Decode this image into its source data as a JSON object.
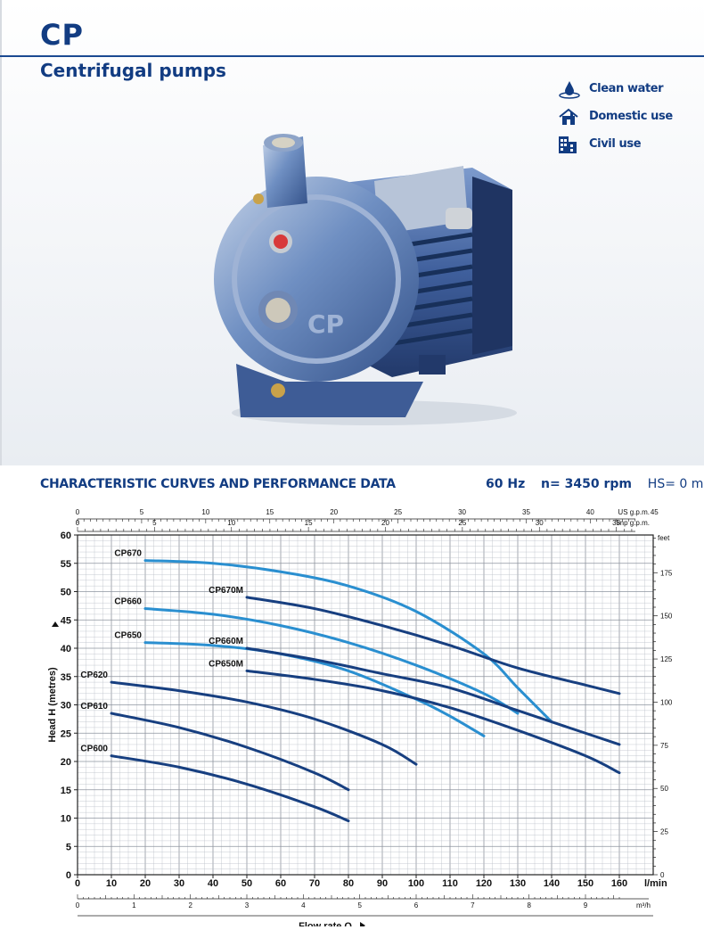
{
  "header": {
    "model": "CP",
    "product": "Centrifugal pumps"
  },
  "uses": [
    {
      "icon": "water-drop-icon",
      "label": "Clean water"
    },
    {
      "icon": "house-icon",
      "label": "Domestic use"
    },
    {
      "icon": "building-icon",
      "label": "Civil use"
    }
  ],
  "section": {
    "title": "CHARACTERISTIC CURVES AND PERFORMANCE DATA",
    "frequency": "60 Hz",
    "speed": "n= 3450 rpm",
    "suction": "HS= 0 m"
  },
  "colors": {
    "brand": "#123c82",
    "curve_light": "#2a8fd0",
    "curve_dark": "#173f80",
    "grid": "#b9bec6"
  },
  "chart_data": {
    "type": "line",
    "title": "",
    "xlabel": "Flow rate Q",
    "ylabel": "Head H (metres)",
    "x_unit": "l/min",
    "xlim": [
      0,
      170
    ],
    "ylim": [
      0,
      60
    ],
    "x_ticks": [
      0,
      10,
      20,
      30,
      40,
      50,
      60,
      70,
      80,
      90,
      100,
      110,
      120,
      130,
      140,
      150,
      160
    ],
    "y_ticks": [
      0,
      5,
      10,
      15,
      20,
      25,
      30,
      35,
      40,
      45,
      50,
      55,
      60
    ],
    "secondary_axes": {
      "us_gpm": {
        "label": "US g.p.m.",
        "ticks": [
          0,
          5,
          10,
          15,
          20,
          25,
          30,
          35,
          40,
          45
        ]
      },
      "imp_gpm": {
        "label": "Imp g.p.m.",
        "ticks": [
          0,
          5,
          10,
          15,
          20,
          25,
          30,
          35
        ]
      },
      "m3h": {
        "label": "m³/h",
        "ticks": [
          0,
          1,
          2,
          3,
          4,
          5,
          6,
          7,
          8,
          9
        ]
      },
      "feet": {
        "label": "feet",
        "ticks": [
          0,
          25,
          50,
          75,
          100,
          125,
          150,
          175
        ]
      }
    },
    "grid": true,
    "series": [
      {
        "name": "CP670",
        "color": "light",
        "x": [
          20,
          40,
          60,
          80,
          100,
          120,
          130,
          140
        ],
        "y": [
          55.5,
          55,
          53.5,
          51,
          46.5,
          39,
          33,
          27
        ]
      },
      {
        "name": "CP660",
        "color": "light",
        "x": [
          20,
          40,
          60,
          80,
          100,
          120,
          130
        ],
        "y": [
          47,
          46,
          44,
          41,
          37,
          32,
          28.5
        ]
      },
      {
        "name": "CP650",
        "color": "light",
        "x": [
          20,
          40,
          60,
          80,
          100,
          110,
          120
        ],
        "y": [
          41,
          40.5,
          39,
          36,
          31,
          28,
          24.5
        ]
      },
      {
        "name": "CP670M",
        "color": "dark",
        "x": [
          50,
          70,
          90,
          110,
          130,
          150,
          160
        ],
        "y": [
          49,
          47,
          44,
          40.5,
          36.5,
          33.5,
          32
        ]
      },
      {
        "name": "CP660M",
        "color": "dark",
        "x": [
          50,
          70,
          90,
          110,
          130,
          150,
          160
        ],
        "y": [
          40,
          38,
          35.5,
          33,
          29,
          25,
          23
        ]
      },
      {
        "name": "CP650M",
        "color": "dark",
        "x": [
          50,
          70,
          90,
          110,
          130,
          150,
          160
        ],
        "y": [
          36,
          34.5,
          32.5,
          29.5,
          25.5,
          21,
          18
        ]
      },
      {
        "name": "CP620",
        "color": "dark",
        "x": [
          10,
          30,
          50,
          70,
          90,
          100
        ],
        "y": [
          34,
          32.5,
          30.5,
          27.5,
          23,
          19.5
        ]
      },
      {
        "name": "CP610",
        "color": "dark",
        "x": [
          10,
          30,
          50,
          70,
          80
        ],
        "y": [
          28.5,
          26,
          22.5,
          18,
          15
        ]
      },
      {
        "name": "CP600",
        "color": "dark",
        "x": [
          10,
          30,
          50,
          70,
          80
        ],
        "y": [
          21,
          19,
          16,
          12,
          9.5
        ]
      }
    ]
  }
}
